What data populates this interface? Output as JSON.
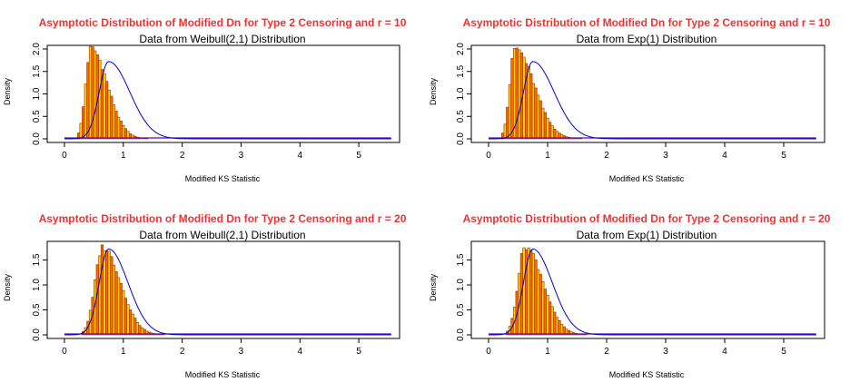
{
  "chart_data": [
    {
      "type": "bar",
      "title": "Asymptotic Distribution of Modified Dn for Type 2 Censoring and r = 10",
      "subtitle": "Data from Weibull(2,1) Distribution",
      "xlabel": "Modified KS Statistic",
      "ylabel": "Density",
      "xlim": [
        -0.2,
        5.6
      ],
      "ylim": [
        0,
        2.0
      ],
      "x_ticks": [
        0,
        1,
        2,
        3,
        4,
        5
      ],
      "y_ticks": [
        "0.0",
        "0.5",
        "1.0",
        "1.5",
        "2.0"
      ],
      "hist_peak": {
        "mode": 0.45,
        "height": 2.02,
        "sigma_left": 0.09,
        "sigma_right": 0.28,
        "start": 0.22,
        "end": 2.1
      },
      "density_curve": {
        "color": "#0000cc",
        "mode": 0.75,
        "height": 1.72,
        "sigma_left": 0.16,
        "sigma_right": 0.36
      },
      "colors": {
        "bar_fill_a": "#ff6600",
        "bar_fill_b": "#ffcc00",
        "bar_border": "#993300",
        "curve": "#0000cc",
        "baseline": "#6600cc"
      }
    },
    {
      "type": "bar",
      "title": "Asymptotic Distribution of Modified Dn for Type 2 Censoring and r = 10",
      "subtitle": "Data from Exp(1) Distribution",
      "xlabel": "Modified KS Statistic",
      "ylabel": "Density",
      "xlim": [
        -0.2,
        5.6
      ],
      "ylim": [
        0,
        2.0
      ],
      "x_ticks": [
        0,
        1,
        2,
        3,
        4,
        5
      ],
      "y_ticks": [
        "0.0",
        "0.5",
        "1.0",
        "1.5",
        "2.0"
      ],
      "hist_peak": {
        "mode": 0.45,
        "height": 2.02,
        "sigma_left": 0.09,
        "sigma_right": 0.32,
        "start": 0.22,
        "end": 2.1
      },
      "density_curve": {
        "color": "#0000cc",
        "mode": 0.75,
        "height": 1.72,
        "sigma_left": 0.16,
        "sigma_right": 0.36
      },
      "colors": {
        "bar_fill_a": "#ff6600",
        "bar_fill_b": "#ffcc00",
        "bar_border": "#993300",
        "curve": "#0000cc",
        "baseline": "#6600cc"
      }
    },
    {
      "type": "bar",
      "title": "Asymptotic Distribution of Modified Dn for Type 2 Censoring and r = 20",
      "subtitle": "Data from Weibull(2,1) Distribution",
      "xlabel": "Modified KS Statistic",
      "ylabel": "Density",
      "xlim": [
        -0.2,
        5.6
      ],
      "ylim": [
        0,
        1.8
      ],
      "x_ticks": [
        0,
        1,
        2,
        3,
        4,
        5
      ],
      "y_ticks": [
        "0.0",
        "0.5",
        "1.0",
        "1.5"
      ],
      "hist_peak": {
        "mode": 0.65,
        "height": 1.76,
        "sigma_left": 0.13,
        "sigma_right": 0.3,
        "start": 0.3,
        "end": 2.0
      },
      "density_curve": {
        "color": "#0000cc",
        "mode": 0.75,
        "height": 1.72,
        "sigma_left": 0.16,
        "sigma_right": 0.33
      },
      "colors": {
        "bar_fill_a": "#ff6600",
        "bar_fill_b": "#ffcc00",
        "bar_border": "#993300",
        "curve": "#0000cc",
        "baseline": "#6600cc"
      }
    },
    {
      "type": "bar",
      "title": "Asymptotic Distribution of Modified Dn for Type 2 Censoring and r = 20",
      "subtitle": "Data from Exp(1) Distribution",
      "xlabel": "Modified KS Statistic",
      "ylabel": "Density",
      "xlim": [
        -0.2,
        5.6
      ],
      "ylim": [
        0,
        1.8
      ],
      "x_ticks": [
        0,
        1,
        2,
        3,
        4,
        5
      ],
      "y_ticks": [
        "0.0",
        "0.5",
        "1.0",
        "1.5"
      ],
      "hist_peak": {
        "mode": 0.62,
        "height": 1.78,
        "sigma_left": 0.12,
        "sigma_right": 0.3,
        "start": 0.3,
        "end": 2.1
      },
      "density_curve": {
        "color": "#0000cc",
        "mode": 0.75,
        "height": 1.72,
        "sigma_left": 0.16,
        "sigma_right": 0.33
      },
      "colors": {
        "bar_fill_a": "#ff6600",
        "bar_fill_b": "#ffcc00",
        "bar_border": "#993300",
        "curve": "#0000cc",
        "baseline": "#6600cc"
      }
    }
  ]
}
